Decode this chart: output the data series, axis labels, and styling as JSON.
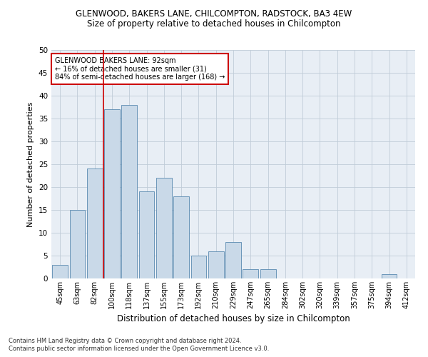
{
  "title": "GLENWOOD, BAKERS LANE, CHILCOMPTON, RADSTOCK, BA3 4EW",
  "subtitle": "Size of property relative to detached houses in Chilcompton",
  "xlabel": "Distribution of detached houses by size in Chilcompton",
  "ylabel": "Number of detached properties",
  "footnote1": "Contains HM Land Registry data © Crown copyright and database right 2024.",
  "footnote2": "Contains public sector information licensed under the Open Government Licence v3.0.",
  "bar_color": "#c9d9e8",
  "bar_edge_color": "#5a8ab0",
  "grid_color": "#c0ccd8",
  "background_color": "#e8eef5",
  "categories": [
    "45sqm",
    "63sqm",
    "82sqm",
    "100sqm",
    "118sqm",
    "137sqm",
    "155sqm",
    "173sqm",
    "192sqm",
    "210sqm",
    "229sqm",
    "247sqm",
    "265sqm",
    "284sqm",
    "302sqm",
    "320sqm",
    "339sqm",
    "357sqm",
    "375sqm",
    "394sqm",
    "412sqm"
  ],
  "values": [
    3,
    15,
    24,
    37,
    38,
    19,
    22,
    18,
    5,
    6,
    8,
    2,
    2,
    0,
    0,
    0,
    0,
    0,
    0,
    1,
    0
  ],
  "ylim": [
    0,
    50
  ],
  "yticks": [
    0,
    5,
    10,
    15,
    20,
    25,
    30,
    35,
    40,
    45,
    50
  ],
  "vline_x": 2.5,
  "vline_color": "#cc0000",
  "annotation_box_color": "#ffffff",
  "annotation_box_edge": "#cc0000",
  "annotation_text_line1": "GLENWOOD BAKERS LANE: 92sqm",
  "annotation_text_line2": "← 16% of detached houses are smaller (31)",
  "annotation_text_line3": "84% of semi-detached houses are larger (168) →",
  "title_fontsize": 8.5,
  "subtitle_fontsize": 8.5,
  "ylabel_fontsize": 8,
  "xlabel_fontsize": 8.5,
  "tick_fontsize": 7,
  "footnote_fontsize": 6,
  "annotation_fontsize": 7
}
